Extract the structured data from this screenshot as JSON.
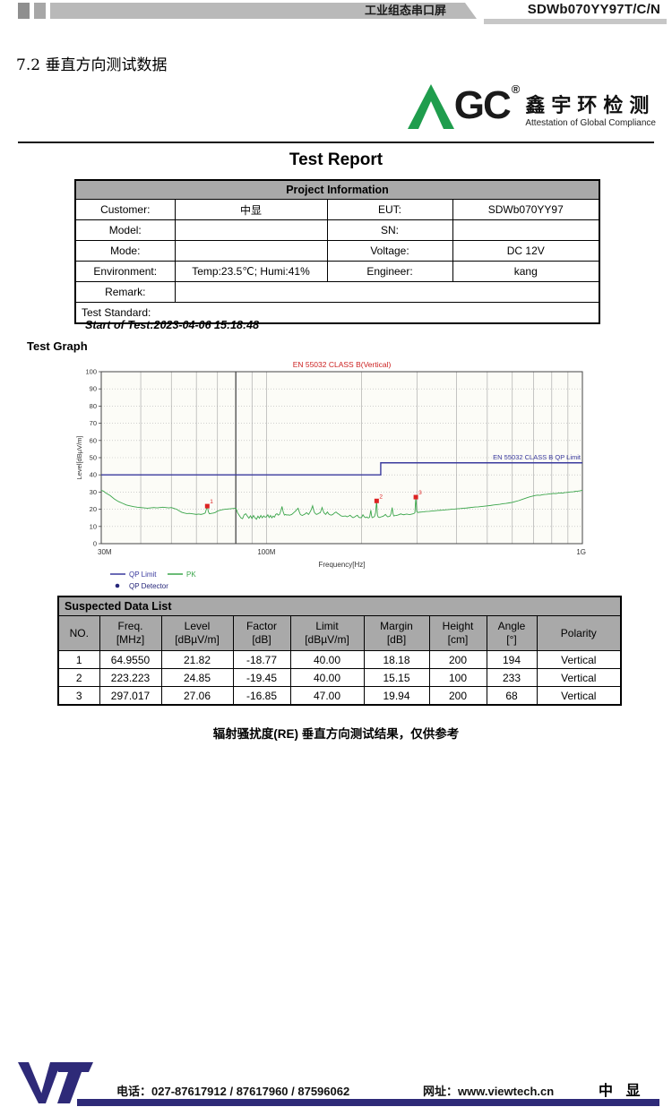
{
  "header": {
    "doc_type": "工业组态串口屏",
    "model": "SDWb070YY97T/C/N"
  },
  "section_title": "7.2 垂直方向测试数据",
  "lab": {
    "brand_a": "A",
    "brand_gc": "GC",
    "reg": "®",
    "cn": "鑫宇环检测",
    "en": "Attestation of Global Compliance",
    "green": "#1f9d4d"
  },
  "report_title": "Test Report",
  "project_info": {
    "header": "Project Information",
    "rows": [
      [
        {
          "t": "Customer:"
        },
        {
          "t": "中显"
        },
        {
          "t": "EUT:"
        },
        {
          "t": "SDWb070YY97"
        }
      ],
      [
        {
          "t": "Model:"
        },
        {
          "t": ""
        },
        {
          "t": "SN:"
        },
        {
          "t": ""
        }
      ],
      [
        {
          "t": "Mode:"
        },
        {
          "t": ""
        },
        {
          "t": "Voltage:"
        },
        {
          "t": "DC 12V"
        }
      ],
      [
        {
          "t": "Environment:"
        },
        {
          "t": "Temp:23.5℃; Humi:41%"
        },
        {
          "t": "Engineer:"
        },
        {
          "t": "kang"
        }
      ],
      [
        {
          "t": "Remark:"
        },
        {
          "t": "",
          "cs": 3
        }
      ],
      [
        {
          "t": "Test Standard:",
          "cs": 4,
          "al": "left"
        }
      ]
    ]
  },
  "start_of_test": "Start of Test:2023-04-06 15:18:48",
  "test_graph_label": "Test Graph",
  "chart_data": {
    "type": "line",
    "title": "EN 55032 CLASS B(Vertical)",
    "title_color": "#cc2222",
    "xlabel": "Frequency[Hz]",
    "ylabel": "Level[dBµV/m]",
    "xscale": "log",
    "xlim_mhz": [
      30,
      1000
    ],
    "ylim": [
      0,
      100
    ],
    "ytick_step": 10,
    "xticks": [
      {
        "mhz": 30,
        "label": "30M"
      },
      {
        "mhz": 100,
        "label": "100M"
      },
      {
        "mhz": 1000,
        "label": "1G"
      }
    ],
    "grid_decades_mhz": [
      40,
      50,
      60,
      70,
      80,
      90,
      100,
      200,
      300,
      400,
      500,
      600,
      700,
      800,
      900
    ],
    "dark_grid_mhz": 80,
    "limit_series": {
      "name": "QP Limit",
      "color": "#3a3a9e",
      "label": "EN 55032 CLASS B QP Limit",
      "points": [
        [
          30,
          40
        ],
        [
          230,
          40
        ],
        [
          230,
          47
        ],
        [
          1000,
          47
        ]
      ]
    },
    "pk_series": {
      "name": "PK",
      "color": "#3aa54a",
      "points": [
        [
          30,
          31
        ],
        [
          30.5,
          30.5
        ],
        [
          31,
          29.5
        ],
        [
          32,
          28
        ],
        [
          33,
          26
        ],
        [
          34,
          24.5
        ],
        [
          35,
          23.5
        ],
        [
          36,
          22.5
        ],
        [
          37,
          22
        ],
        [
          38,
          21.5
        ],
        [
          39,
          21.2
        ],
        [
          40,
          21
        ],
        [
          41,
          20.8
        ],
        [
          42,
          20.6
        ],
        [
          43,
          20.8
        ],
        [
          44,
          21
        ],
        [
          45,
          20.8
        ],
        [
          46,
          21
        ],
        [
          47,
          21.2
        ],
        [
          48,
          21
        ],
        [
          49,
          20.8
        ],
        [
          50,
          21
        ],
        [
          51,
          20.5
        ],
        [
          52,
          20
        ],
        [
          53,
          19
        ],
        [
          54,
          18.2
        ],
        [
          55,
          17.8
        ],
        [
          56,
          17.5
        ],
        [
          57,
          17.6
        ],
        [
          58,
          17.4
        ],
        [
          59,
          17.2
        ],
        [
          60,
          17
        ],
        [
          61,
          17.2
        ],
        [
          62,
          17
        ],
        [
          63,
          17.3
        ],
        [
          64,
          17.8
        ],
        [
          64.955,
          21.8
        ],
        [
          65.5,
          18.5
        ],
        [
          66,
          17.4
        ],
        [
          67,
          17.6
        ],
        [
          68,
          17.8
        ],
        [
          69,
          18.2
        ],
        [
          70,
          19
        ],
        [
          71,
          19.3
        ],
        [
          72,
          19.6
        ],
        [
          73,
          19.8
        ],
        [
          74,
          20
        ],
        [
          75,
          20.1
        ],
        [
          76,
          20.2
        ],
        [
          77,
          20.3
        ],
        [
          78,
          20.4
        ],
        [
          79,
          20.5
        ],
        [
          80,
          20.6
        ],
        [
          80.5,
          19.5
        ],
        [
          81,
          18
        ],
        [
          82,
          16.5
        ],
        [
          83,
          15
        ],
        [
          84,
          14.5
        ],
        [
          85,
          16.8
        ],
        [
          86,
          17.4
        ],
        [
          87,
          16
        ],
        [
          88,
          14.8
        ],
        [
          89,
          16.2
        ],
        [
          90,
          14.6
        ],
        [
          91,
          16.4
        ],
        [
          92,
          15
        ],
        [
          93,
          14.2
        ],
        [
          94,
          16
        ],
        [
          95,
          14.8
        ],
        [
          96,
          16.4
        ],
        [
          97,
          15
        ],
        [
          98,
          16.2
        ],
        [
          99,
          15.4
        ],
        [
          100,
          15.6
        ],
        [
          101,
          16.8
        ],
        [
          102,
          15.2
        ],
        [
          103,
          16.4
        ],
        [
          104,
          15
        ],
        [
          105,
          16
        ],
        [
          106,
          15.4
        ],
        [
          107,
          17
        ],
        [
          108,
          17.4
        ],
        [
          109,
          16.6
        ],
        [
          110,
          17
        ],
        [
          111,
          19
        ],
        [
          112,
          21.6
        ],
        [
          113,
          18.4
        ],
        [
          114,
          16.6
        ],
        [
          115,
          17
        ],
        [
          116,
          16.6
        ],
        [
          117,
          16.8
        ],
        [
          118,
          16.5
        ],
        [
          119,
          16.7
        ],
        [
          120,
          16.9
        ],
        [
          121,
          17.4
        ],
        [
          122,
          18
        ],
        [
          123,
          18.6
        ],
        [
          124,
          19.2
        ],
        [
          125,
          20
        ],
        [
          126,
          20.6
        ],
        [
          127,
          18.6
        ],
        [
          128,
          17
        ],
        [
          129,
          16.6
        ],
        [
          130,
          16.4
        ],
        [
          131,
          16.8
        ],
        [
          132,
          17
        ],
        [
          133,
          17.6
        ],
        [
          134,
          18
        ],
        [
          135,
          17.4
        ],
        [
          136,
          17
        ],
        [
          137,
          18
        ],
        [
          138,
          19
        ],
        [
          139,
          20.4
        ],
        [
          140,
          22
        ],
        [
          141,
          19.6
        ],
        [
          142,
          18
        ],
        [
          143,
          17.4
        ],
        [
          144,
          17
        ],
        [
          145,
          17.2
        ],
        [
          146,
          17.5
        ],
        [
          147,
          17.8
        ],
        [
          148,
          18
        ],
        [
          149,
          19.4
        ],
        [
          150,
          21
        ],
        [
          151,
          19.4
        ],
        [
          152,
          18
        ],
        [
          153,
          17.4
        ],
        [
          154,
          17
        ],
        [
          155,
          17.8
        ],
        [
          156,
          18.4
        ],
        [
          157,
          17.6
        ],
        [
          158,
          17
        ],
        [
          159,
          16.8
        ],
        [
          160,
          16.6
        ],
        [
          162,
          16.9
        ],
        [
          164,
          17.8
        ],
        [
          166,
          18.4
        ],
        [
          168,
          17.6
        ],
        [
          170,
          17
        ],
        [
          172,
          16.2
        ],
        [
          174,
          15.9
        ],
        [
          176,
          16
        ],
        [
          178,
          16.1
        ],
        [
          180,
          15.6
        ],
        [
          182,
          16
        ],
        [
          184,
          16.5
        ],
        [
          186,
          15.7
        ],
        [
          188,
          15.1
        ],
        [
          190,
          15.5
        ],
        [
          192,
          16.1
        ],
        [
          194,
          16.5
        ],
        [
          196,
          15.3
        ],
        [
          198,
          15.1
        ],
        [
          200,
          15.2
        ],
        [
          202,
          16.8
        ],
        [
          204,
          15.6
        ],
        [
          206,
          15.1
        ],
        [
          208,
          15.5
        ],
        [
          210,
          14.9
        ],
        [
          212,
          15.3
        ],
        [
          214,
          19.5
        ],
        [
          215,
          16.5
        ],
        [
          216,
          15.1
        ],
        [
          218,
          15.3
        ],
        [
          220,
          16
        ],
        [
          221.5,
          18
        ],
        [
          223.223,
          24.9
        ],
        [
          224.5,
          16.5
        ],
        [
          226,
          15.4
        ],
        [
          228,
          15.2
        ],
        [
          230,
          15.5
        ],
        [
          232,
          15.7
        ],
        [
          234,
          15.9
        ],
        [
          236,
          16.4
        ],
        [
          238,
          17
        ],
        [
          240,
          16.2
        ],
        [
          242,
          15.6
        ],
        [
          244,
          15.8
        ],
        [
          246,
          16
        ],
        [
          248,
          17.5
        ],
        [
          250,
          21
        ],
        [
          251.5,
          17.5
        ],
        [
          253,
          16.1
        ],
        [
          255,
          16.3
        ],
        [
          257,
          16.4
        ],
        [
          260,
          16.6
        ],
        [
          263,
          16.9
        ],
        [
          266,
          17.3
        ],
        [
          269,
          17
        ],
        [
          272,
          16.8
        ],
        [
          275,
          17
        ],
        [
          278,
          17.2
        ],
        [
          281,
          17
        ],
        [
          284,
          16.9
        ],
        [
          287,
          17.1
        ],
        [
          290,
          17.3
        ],
        [
          293,
          17.5
        ],
        [
          295,
          18
        ],
        [
          297.017,
          27.1
        ],
        [
          299,
          18.6
        ],
        [
          302,
          18.1
        ],
        [
          305,
          18.3
        ],
        [
          310,
          18.4
        ],
        [
          315,
          18.5
        ],
        [
          320,
          18.7
        ],
        [
          327,
          18.8
        ],
        [
          334,
          19
        ],
        [
          341,
          19.1
        ],
        [
          348,
          19.3
        ],
        [
          355,
          19.4
        ],
        [
          362,
          19.5
        ],
        [
          370,
          19.7
        ],
        [
          378,
          19.8
        ],
        [
          386,
          20
        ],
        [
          394,
          20.1
        ],
        [
          402,
          20.3
        ],
        [
          411,
          20.4
        ],
        [
          420,
          20.6
        ],
        [
          429,
          20.7
        ],
        [
          438,
          20.9
        ],
        [
          448,
          21.1
        ],
        [
          458,
          21.3
        ],
        [
          468,
          21.4
        ],
        [
          478,
          21.6
        ],
        [
          489,
          21.8
        ],
        [
          500,
          22
        ],
        [
          512,
          22.2
        ],
        [
          524,
          22.5
        ],
        [
          536,
          22.7
        ],
        [
          548,
          22.9
        ],
        [
          560,
          23.2
        ],
        [
          573,
          23.4
        ],
        [
          586,
          23.7
        ],
        [
          600,
          24
        ],
        [
          614,
          24.5
        ],
        [
          628,
          25
        ],
        [
          642,
          25.6
        ],
        [
          656,
          26.2
        ],
        [
          670,
          26.8
        ],
        [
          684,
          27.3
        ],
        [
          698,
          27.7
        ],
        [
          710,
          28
        ],
        [
          722,
          28.2
        ],
        [
          734,
          28.1
        ],
        [
          746,
          28.4
        ],
        [
          758,
          28.6
        ],
        [
          770,
          28.7
        ],
        [
          783,
          28.9
        ],
        [
          796,
          29
        ],
        [
          810,
          29.2
        ],
        [
          824,
          29.1
        ],
        [
          838,
          29.4
        ],
        [
          852,
          29.5
        ],
        [
          866,
          29.4
        ],
        [
          880,
          29.7
        ],
        [
          894,
          29.8
        ],
        [
          908,
          30
        ],
        [
          922,
          30.1
        ],
        [
          936,
          30.2
        ],
        [
          950,
          30.4
        ],
        [
          965,
          30.5
        ],
        [
          980,
          30.7
        ],
        [
          1000,
          31
        ]
      ]
    },
    "markers": [
      {
        "n": "1",
        "mhz": 64.955,
        "level": 21.82
      },
      {
        "n": "2",
        "mhz": 223.223,
        "level": 24.85
      },
      {
        "n": "3",
        "mhz": 297.017,
        "level": 27.06
      }
    ],
    "marker_color": "#dd2222",
    "legend": [
      {
        "name": "QP Limit",
        "type": "line",
        "color": "#3a3a9e"
      },
      {
        "name": "QP Detector",
        "type": "dot",
        "color": "#26267a"
      },
      {
        "name": "PK",
        "type": "line",
        "color": "#3aa54a"
      }
    ]
  },
  "suspected_list": {
    "title": "Suspected Data List",
    "columns": [
      [
        "NO.",
        ""
      ],
      [
        "Freq.",
        "[MHz]"
      ],
      [
        "Level",
        "[dBµV/m]"
      ],
      [
        "Factor",
        "[dB]"
      ],
      [
        "Limit",
        "[dBµV/m]"
      ],
      [
        "Margin",
        "[dB]"
      ],
      [
        "Height",
        "[cm]"
      ],
      [
        "Angle",
        "[°]"
      ],
      [
        "Polarity",
        ""
      ]
    ],
    "rows": [
      [
        "1",
        "64.9550",
        "21.82",
        "-18.77",
        "40.00",
        "18.18",
        "200",
        "194",
        "Vertical"
      ],
      [
        "2",
        "223.223",
        "24.85",
        "-19.45",
        "40.00",
        "15.15",
        "100",
        "233",
        "Vertical"
      ],
      [
        "3",
        "297.017",
        "27.06",
        "-16.85",
        "47.00",
        "19.94",
        "200",
        "68",
        "Vertical"
      ]
    ]
  },
  "caption": "辐射骚扰度(RE) 垂直方向测试结果，仅供参考",
  "footer": {
    "phone": "电话：027-87617912 / 87617960 / 87596062",
    "site": "网址：www.viewtech.cn",
    "company": "中 显",
    "navy": "#2e2a78"
  }
}
